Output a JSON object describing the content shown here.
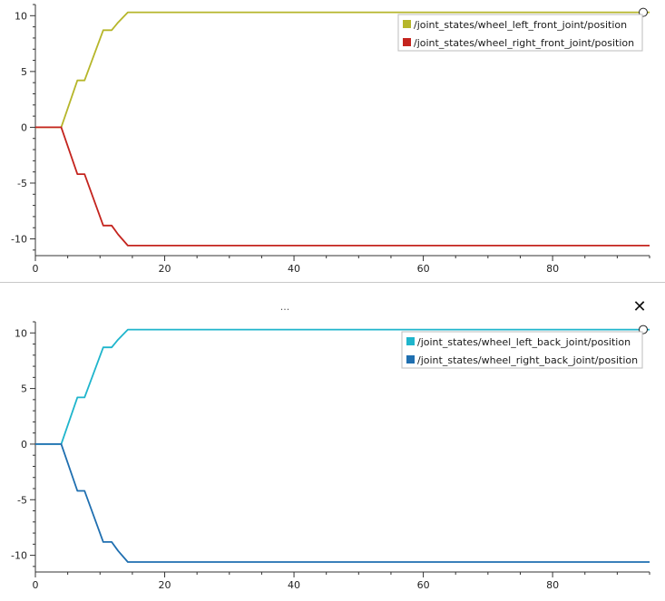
{
  "panel": {
    "menu_label": "...",
    "close_label": "✕"
  },
  "chart_data": [
    {
      "type": "line",
      "title": "",
      "xlabel": "",
      "ylabel": "",
      "xlim": [
        0,
        95
      ],
      "ylim": [
        -11.5,
        11
      ],
      "x_ticks": [
        0,
        20,
        40,
        60,
        80
      ],
      "y_ticks": [
        10,
        5,
        0,
        -5,
        -10
      ],
      "grid": false,
      "legend": "top-right",
      "series": [
        {
          "name": "/joint_states/wheel_left_front_joint/position",
          "color": "#b6b62a",
          "x": [
            0,
            4,
            6.5,
            7.6,
            10.5,
            11.8,
            12.8,
            14.3,
            95
          ],
          "y": [
            0,
            0,
            4.2,
            4.2,
            8.7,
            8.7,
            9.4,
            10.3,
            10.3
          ]
        },
        {
          "name": "/joint_states/wheel_right_front_joint/position",
          "color": "#c4241e",
          "x": [
            0,
            4,
            6.5,
            7.6,
            10.5,
            11.8,
            12.8,
            14.3,
            95
          ],
          "y": [
            0,
            0,
            -4.2,
            -4.2,
            -8.8,
            -8.8,
            -9.6,
            -10.6,
            -10.6
          ]
        }
      ]
    },
    {
      "type": "line",
      "title": "",
      "xlabel": "",
      "ylabel": "",
      "xlim": [
        0,
        95
      ],
      "ylim": [
        -11.5,
        11
      ],
      "x_ticks": [
        0,
        20,
        40,
        60,
        80
      ],
      "y_ticks": [
        10,
        5,
        0,
        -5,
        -10
      ],
      "grid": false,
      "legend": "top-right",
      "series": [
        {
          "name": "/joint_states/wheel_left_back_joint/position",
          "color": "#1fb5cc",
          "x": [
            0,
            4,
            6.5,
            7.6,
            10.5,
            11.8,
            12.8,
            14.3,
            95
          ],
          "y": [
            0,
            0,
            4.2,
            4.2,
            8.7,
            8.7,
            9.4,
            10.3,
            10.3
          ]
        },
        {
          "name": "/joint_states/wheel_right_back_joint/position",
          "color": "#1f6fb0",
          "x": [
            0,
            4,
            6.5,
            7.6,
            10.5,
            11.8,
            12.8,
            14.3,
            95
          ],
          "y": [
            0,
            0,
            -4.2,
            -4.2,
            -8.8,
            -8.8,
            -9.6,
            -10.6,
            -10.6
          ]
        }
      ]
    }
  ]
}
